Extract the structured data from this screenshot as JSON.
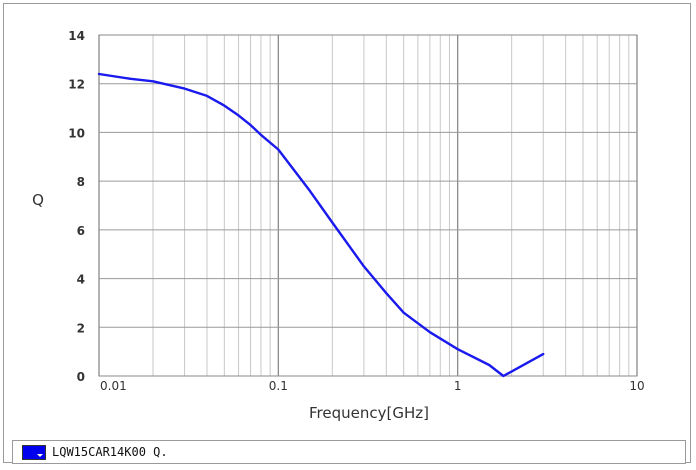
{
  "chart_data": {
    "type": "line",
    "title": "",
    "xlabel": "Frequency[GHz]",
    "ylabel": "Q",
    "xscale": "log",
    "xlim": [
      0.01,
      10
    ],
    "ylim": [
      0,
      14
    ],
    "x_ticks": [
      "0.01",
      "0.1",
      "1",
      "10"
    ],
    "y_ticks": [
      "0",
      "2",
      "4",
      "6",
      "8",
      "10",
      "12",
      "14"
    ],
    "grid": true,
    "legend_position": "bottom",
    "series": [
      {
        "name": "LQW15CAR14K00 Q.",
        "color": "#1a1aee",
        "x": [
          0.01,
          0.015,
          0.02,
          0.03,
          0.04,
          0.05,
          0.06,
          0.07,
          0.08,
          0.1,
          0.15,
          0.2,
          0.3,
          0.4,
          0.5,
          0.7,
          1.0,
          1.5,
          1.8,
          3.0
        ],
        "y": [
          12.4,
          12.2,
          12.1,
          11.8,
          11.5,
          11.1,
          10.7,
          10.3,
          9.9,
          9.3,
          7.6,
          6.3,
          4.5,
          3.4,
          2.6,
          1.8,
          1.1,
          0.45,
          0.0,
          0.9
        ]
      }
    ]
  },
  "legend": {
    "label": "LQW15CAR14K00 Q."
  }
}
